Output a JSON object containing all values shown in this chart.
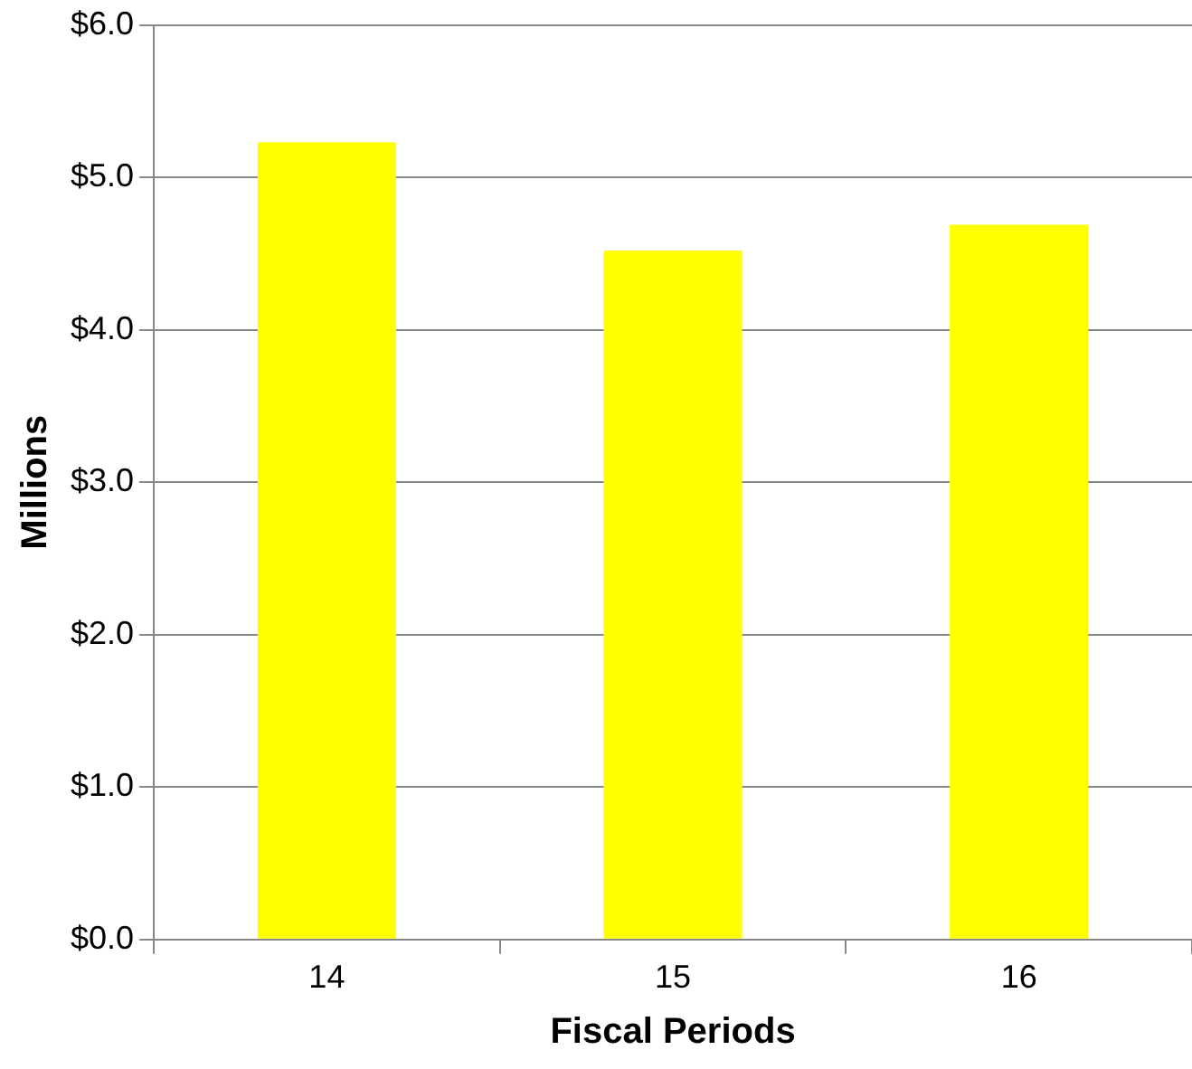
{
  "chart_data": {
    "type": "bar",
    "xlabel": "Fiscal Periods",
    "ylabel": "Millions",
    "categories": [
      "14",
      "15",
      "16"
    ],
    "values": [
      5.23,
      4.52,
      4.69
    ],
    "color": "#ffff00",
    "ylim": [
      0,
      6
    ],
    "yticks": [
      {
        "value": 0,
        "label": "$0.0"
      },
      {
        "value": 1,
        "label": "$1.0"
      },
      {
        "value": 2,
        "label": "$2.0"
      },
      {
        "value": 3,
        "label": "$3.0"
      },
      {
        "value": 4,
        "label": "$4.0"
      },
      {
        "value": 5,
        "label": "$5.0"
      },
      {
        "value": 6,
        "label": "$6.0"
      }
    ],
    "grid": "y",
    "legend": false
  }
}
